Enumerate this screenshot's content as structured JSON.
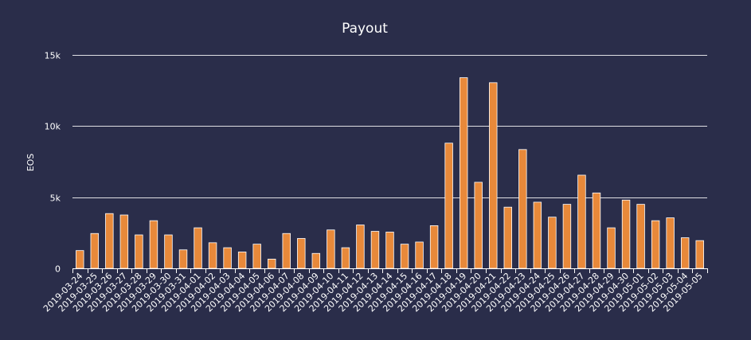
{
  "chart_data": {
    "type": "bar",
    "title": "Payout",
    "xlabel": "",
    "ylabel": "EOS",
    "ylim": [
      0,
      15000
    ],
    "yticks": [
      {
        "value": 0,
        "label": "0"
      },
      {
        "value": 5000,
        "label": "5k"
      },
      {
        "value": 10000,
        "label": "10k"
      },
      {
        "value": 15000,
        "label": "15k"
      }
    ],
    "grid": true,
    "legend": "none",
    "bar_color": "#e8893a",
    "background_color": "#2a2d4a",
    "grid_color": "#ffffff",
    "categories": [
      "2019-03-24",
      "2019-03-25",
      "2019-03-26",
      "2019-03-27",
      "2019-03-28",
      "2019-03-29",
      "2019-03-30",
      "2019-03-31",
      "2019-04-01",
      "2019-04-02",
      "2019-04-03",
      "2019-04-04",
      "2019-04-05",
      "2019-04-06",
      "2019-04-07",
      "2019-04-08",
      "2019-04-09",
      "2019-04-10",
      "2019-04-11",
      "2019-04-12",
      "2019-04-13",
      "2019-04-14",
      "2019-04-15",
      "2019-04-16",
      "2019-04-17",
      "2019-04-18",
      "2019-04-19",
      "2019-04-20",
      "2019-04-21",
      "2019-04-22",
      "2019-04-23",
      "2019-04-24",
      "2019-04-25",
      "2019-04-26",
      "2019-04-27",
      "2019-04-28",
      "2019-04-29",
      "2019-04-30",
      "2019-05-01",
      "2019-05-02",
      "2019-05-03",
      "2019-05-04",
      "2019-05-05"
    ],
    "values": [
      1250,
      2450,
      3850,
      3750,
      2350,
      3350,
      2350,
      1300,
      2850,
      1800,
      1450,
      1150,
      1700,
      650,
      2450,
      2100,
      1050,
      2700,
      1450,
      3050,
      2600,
      2550,
      1700,
      1850,
      3000,
      8800,
      13400,
      6050,
      13050,
      4300,
      8350,
      4650,
      3600,
      4500,
      6550,
      5300,
      2850,
      4800,
      4500,
      3350,
      3550,
      2150,
      1950
    ]
  }
}
